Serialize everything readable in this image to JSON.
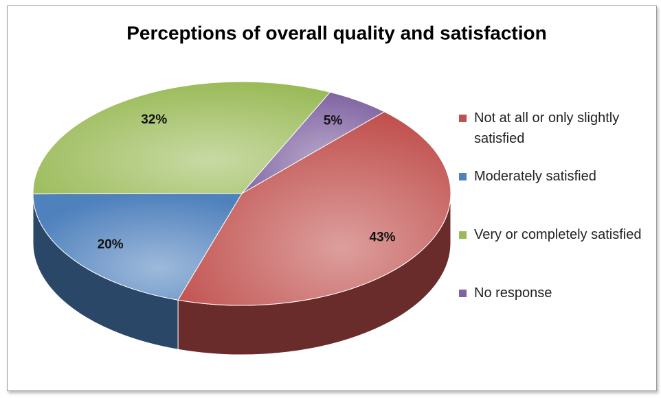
{
  "chart_data": {
    "type": "pie",
    "title": "Perceptions of overall quality and satisfaction",
    "categories": [
      "Not at all or only slightly satisfied",
      "Moderately satisfied",
      "Very or completely satisfied",
      "No response"
    ],
    "values": [
      43,
      20,
      32,
      5
    ],
    "value_labels": [
      "43%",
      "20%",
      "32%",
      "5%"
    ],
    "colors": [
      "#c0504d",
      "#4f81bd",
      "#9bbb59",
      "#8064a2"
    ],
    "legend": "right"
  }
}
